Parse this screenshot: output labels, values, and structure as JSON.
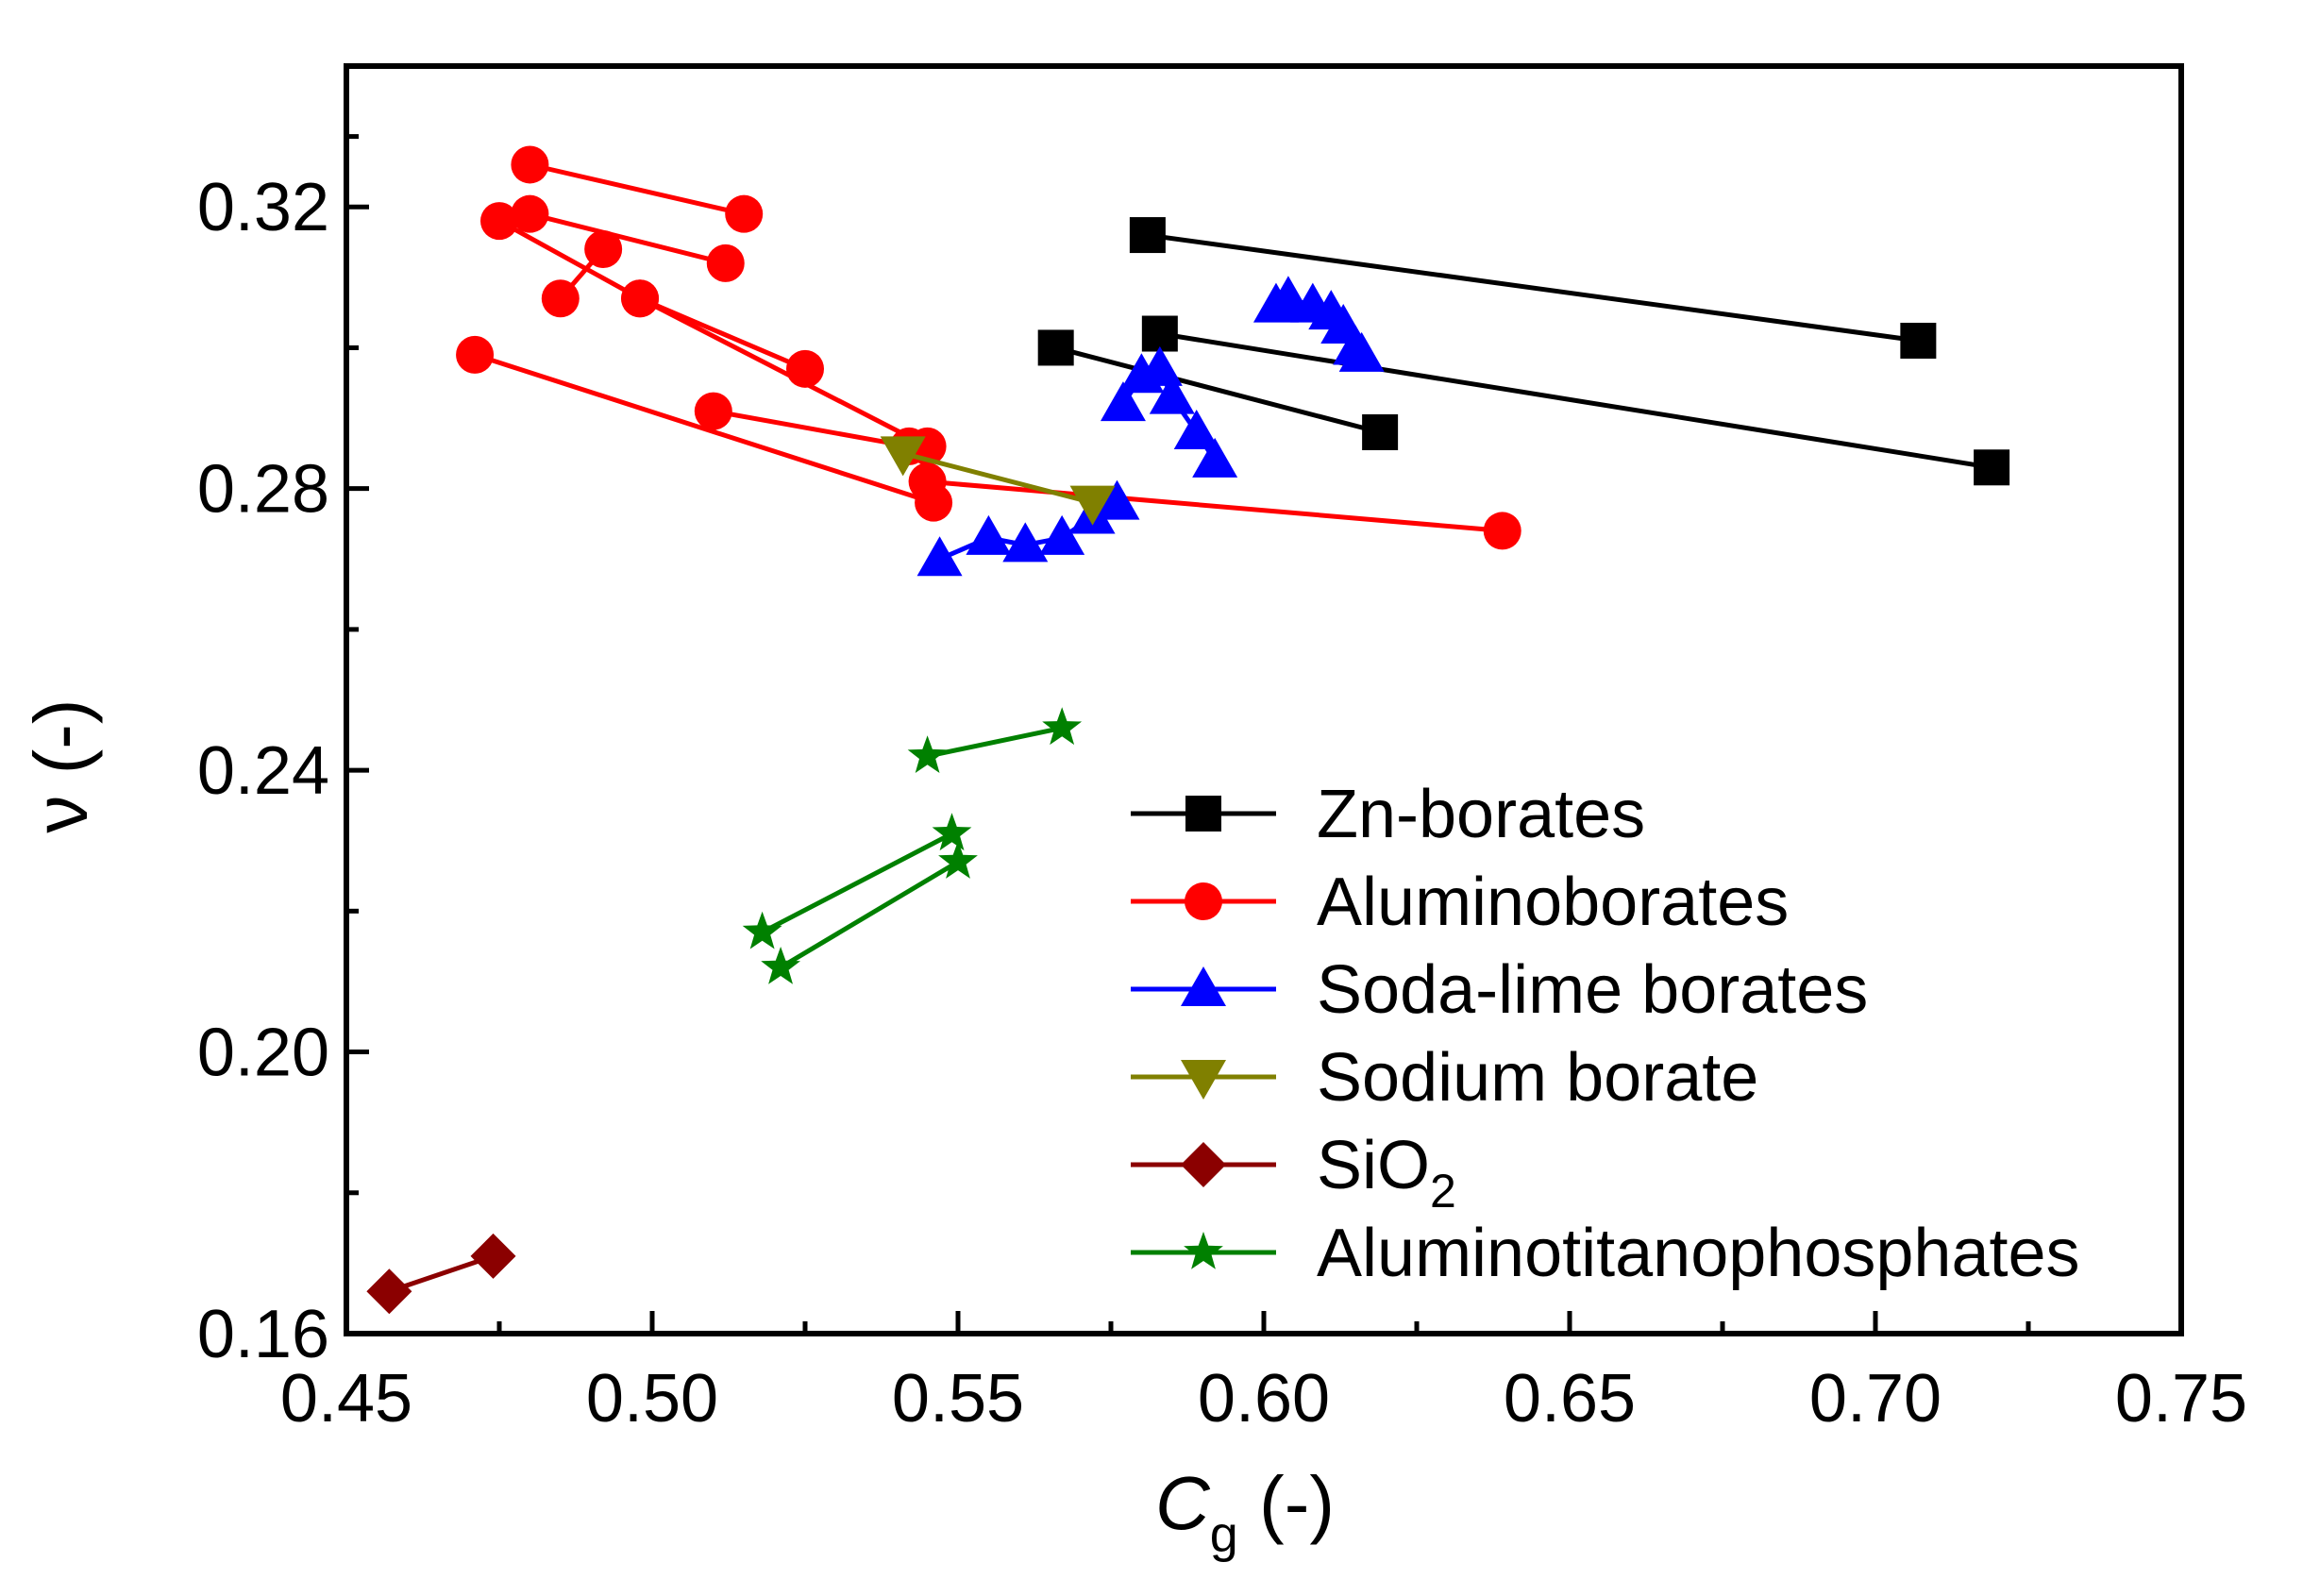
{
  "chart_data": {
    "type": "scatter",
    "title": "",
    "xlabel": {
      "main": "C",
      "sub": "g",
      "suffix": " (-)"
    },
    "ylabel": "ν (-)",
    "xlim": [
      0.45,
      0.75
    ],
    "ylim": [
      0.16,
      0.34
    ],
    "x_ticks": [
      0.45,
      0.5,
      0.55,
      0.6,
      0.65,
      0.7,
      0.75
    ],
    "x_tick_labels": [
      "0.45",
      "0.50",
      "0.55",
      "0.60",
      "0.65",
      "0.70",
      "0.75"
    ],
    "y_ticks": [
      0.16,
      0.2,
      0.24,
      0.28,
      0.32
    ],
    "y_tick_labels": [
      "0.16",
      "0.20",
      "0.24",
      "0.28",
      "0.32"
    ],
    "grid": false,
    "legend_position": "bottom-right",
    "series": [
      {
        "name": "Zn-borates",
        "legend": {
          "main": "Zn-borates"
        },
        "color": "#000000",
        "marker": "square",
        "segments": [
          [
            [
              0.581,
              0.316
            ],
            [
              0.707,
              0.301
            ]
          ],
          [
            [
              0.566,
              0.3
            ],
            [
              0.619,
              0.288
            ]
          ],
          [
            [
              0.583,
              0.302
            ],
            [
              0.719,
              0.283
            ]
          ]
        ]
      },
      {
        "name": "Aluminoborates",
        "legend": {
          "main": "Aluminoborates"
        },
        "color": "#ff0000",
        "marker": "circle",
        "segments": [
          [
            [
              0.48,
              0.326
            ],
            [
              0.515,
              0.319
            ]
          ],
          [
            [
              0.48,
              0.319
            ],
            [
              0.512,
              0.312
            ]
          ],
          [
            [
              0.475,
              0.318
            ],
            [
              0.498,
              0.307
            ],
            [
              0.525,
              0.297
            ]
          ],
          [
            [
              0.492,
              0.314
            ],
            [
              0.485,
              0.307
            ]
          ],
          [
            [
              0.498,
              0.307
            ],
            [
              0.545,
              0.286
            ]
          ],
          [
            [
              0.471,
              0.299
            ],
            [
              0.546,
              0.278
            ]
          ],
          [
            [
              0.51,
              0.291
            ],
            [
              0.542,
              0.286
            ]
          ],
          [
            [
              0.545,
              0.281
            ],
            [
              0.639,
              0.274
            ]
          ]
        ]
      },
      {
        "name": "Soda-lime borates",
        "legend": {
          "main": "Soda-lime borates"
        },
        "color": "#0000ff",
        "marker": "triangle-up",
        "segments": [
          [
            [
              0.547,
              0.27
            ],
            [
              0.555,
              0.273
            ],
            [
              0.561,
              0.272
            ],
            [
              0.567,
              0.273
            ],
            [
              0.572,
              0.276
            ],
            [
              0.576,
              0.278
            ]
          ],
          [
            [
              0.577,
              0.292
            ],
            [
              0.58,
              0.296
            ],
            [
              0.583,
              0.297
            ],
            [
              0.585,
              0.293
            ],
            [
              0.589,
              0.288
            ],
            [
              0.592,
              0.284
            ]
          ],
          [
            [
              0.602,
              0.306
            ],
            [
              0.604,
              0.307
            ],
            [
              0.608,
              0.306
            ],
            [
              0.611,
              0.305
            ],
            [
              0.613,
              0.303
            ],
            [
              0.615,
              0.3
            ],
            [
              0.616,
              0.299
            ]
          ]
        ]
      },
      {
        "name": "Sodium borate",
        "legend": {
          "main": "Sodium borate"
        },
        "color": "#808000",
        "marker": "triangle-down",
        "segments": [
          [
            [
              0.541,
              0.285
            ],
            [
              0.572,
              0.278
            ]
          ]
        ]
      },
      {
        "name": "SiO2",
        "legend": {
          "main": "SiO",
          "sub": "2"
        },
        "color": "#8b0000",
        "marker": "diamond",
        "segments": [
          [
            [
              0.457,
              0.166
            ],
            [
              0.474,
              0.171
            ]
          ]
        ]
      },
      {
        "name": "Aluminotitanophosphates",
        "legend": {
          "main": "Aluminotitanophosphates"
        },
        "color": "#008000",
        "marker": "star",
        "segments": [
          [
            [
              0.545,
              0.242
            ],
            [
              0.567,
              0.246
            ]
          ],
          [
            [
              0.518,
              0.217
            ],
            [
              0.549,
              0.231
            ]
          ],
          [
            [
              0.521,
              0.212
            ],
            [
              0.55,
              0.227
            ]
          ]
        ]
      }
    ]
  }
}
